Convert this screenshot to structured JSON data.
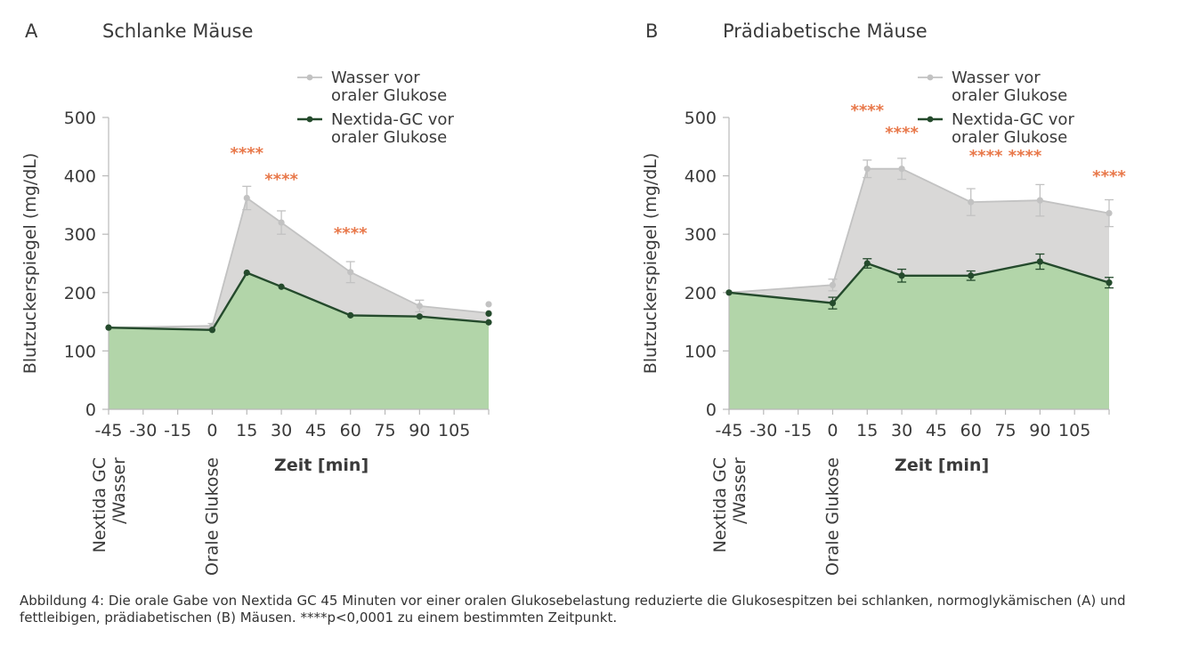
{
  "figure": {
    "caption_label": "Abbildung 4:",
    "caption_text": "Die orale Gabe von Nextida GC 45 Minuten vor einer oralen Glukosebelastung reduzierte die Glukosespitzen bei schlanken, normoglykämischen (A) und fettleibigen, prädiabetischen (B) Mäusen. ****p<0,0001 zu einem bestimmten Zeitpunkt."
  },
  "colors": {
    "gray_line": "#c2c2c2",
    "gray_fill": "#d9d8d7",
    "green_line": "#244a2c",
    "green_fill": "#b2d5a9",
    "stars": "#e8784a",
    "axis": "#b9b9b9",
    "text": "#3a3a3a"
  },
  "chart_data": [
    {
      "panel": "A",
      "type": "line",
      "title": "Schlanke Mäuse",
      "xlabel": "Zeit [min]",
      "ylabel": "Blutzuckerspiegel (mg/dL)",
      "xticks": [
        -45,
        -30,
        -15,
        0,
        15,
        30,
        45,
        60,
        75,
        90,
        105
      ],
      "xlim": [
        -45,
        120
      ],
      "yticks": [
        0,
        100,
        200,
        300,
        400,
        500
      ],
      "ylim": [
        0,
        500
      ],
      "grid": false,
      "legend_position": "top-right",
      "event_labels": [
        {
          "x": -45,
          "text": "Nextida GC\n/Wasser"
        },
        {
          "x": 0,
          "text": "Orale Glukose"
        }
      ],
      "series": [
        {
          "name": "Wasser vor\noraler Glukose",
          "color": "#c2c2c2",
          "x": [
            -45,
            0,
            15,
            30,
            60,
            90,
            120
          ],
          "y": [
            140,
            143,
            362,
            320,
            235,
            177,
            165
          ],
          "err": [
            0,
            4,
            20,
            20,
            18,
            10,
            0
          ],
          "marker_extra": {
            "x": 120,
            "y": 180
          }
        },
        {
          "name": "Nextida-GC vor\noraler Glukose",
          "color": "#244a2c",
          "x": [
            -45,
            0,
            15,
            30,
            60,
            90,
            120
          ],
          "y": [
            140,
            136,
            234,
            210,
            161,
            159,
            149
          ],
          "err": [
            0,
            0,
            0,
            0,
            0,
            0,
            0
          ],
          "marker_extra": {
            "x": 120,
            "y": 164
          }
        }
      ],
      "annotations": [
        {
          "text": "****",
          "x": 15,
          "y": 430
        },
        {
          "text": "****",
          "x": 30,
          "y": 385
        },
        {
          "text": "****",
          "x": 60,
          "y": 293
        }
      ]
    },
    {
      "panel": "B",
      "type": "line",
      "title": "Prädiabetische Mäuse",
      "xlabel": "Zeit [min]",
      "ylabel": "Blutzuckerspiegel (mg/dL)",
      "xticks": [
        -45,
        -30,
        -15,
        0,
        15,
        30,
        45,
        60,
        75,
        90,
        105
      ],
      "xlim": [
        -45,
        120
      ],
      "yticks": [
        0,
        100,
        200,
        300,
        400,
        500
      ],
      "ylim": [
        0,
        500
      ],
      "grid": false,
      "legend_position": "top-right",
      "event_labels": [
        {
          "x": -45,
          "text": "Nextida GC\n/Wasser"
        },
        {
          "x": 0,
          "text": "Orale Glukose"
        }
      ],
      "series": [
        {
          "name": "Wasser vor\noraler Glukose",
          "color": "#c2c2c2",
          "x": [
            -45,
            0,
            15,
            30,
            60,
            90,
            120
          ],
          "y": [
            200,
            213,
            412,
            412,
            355,
            358,
            336
          ],
          "err": [
            0,
            10,
            15,
            18,
            23,
            27,
            23
          ]
        },
        {
          "name": "Nextida-GC vor\noraler Glukose",
          "color": "#244a2c",
          "x": [
            -45,
            0,
            15,
            30,
            60,
            90,
            120
          ],
          "y": [
            200,
            182,
            250,
            229,
            229,
            253,
            217
          ],
          "err": [
            0,
            10,
            8,
            11,
            8,
            13,
            9
          ]
        }
      ],
      "annotations": [
        {
          "text": "****",
          "x": 15,
          "y": 503
        },
        {
          "text": "****",
          "x": 30,
          "y": 465
        },
        {
          "text": "**** ****",
          "x": 75,
          "y": 425
        },
        {
          "text": "****",
          "x": 120,
          "y": 390
        }
      ]
    }
  ]
}
